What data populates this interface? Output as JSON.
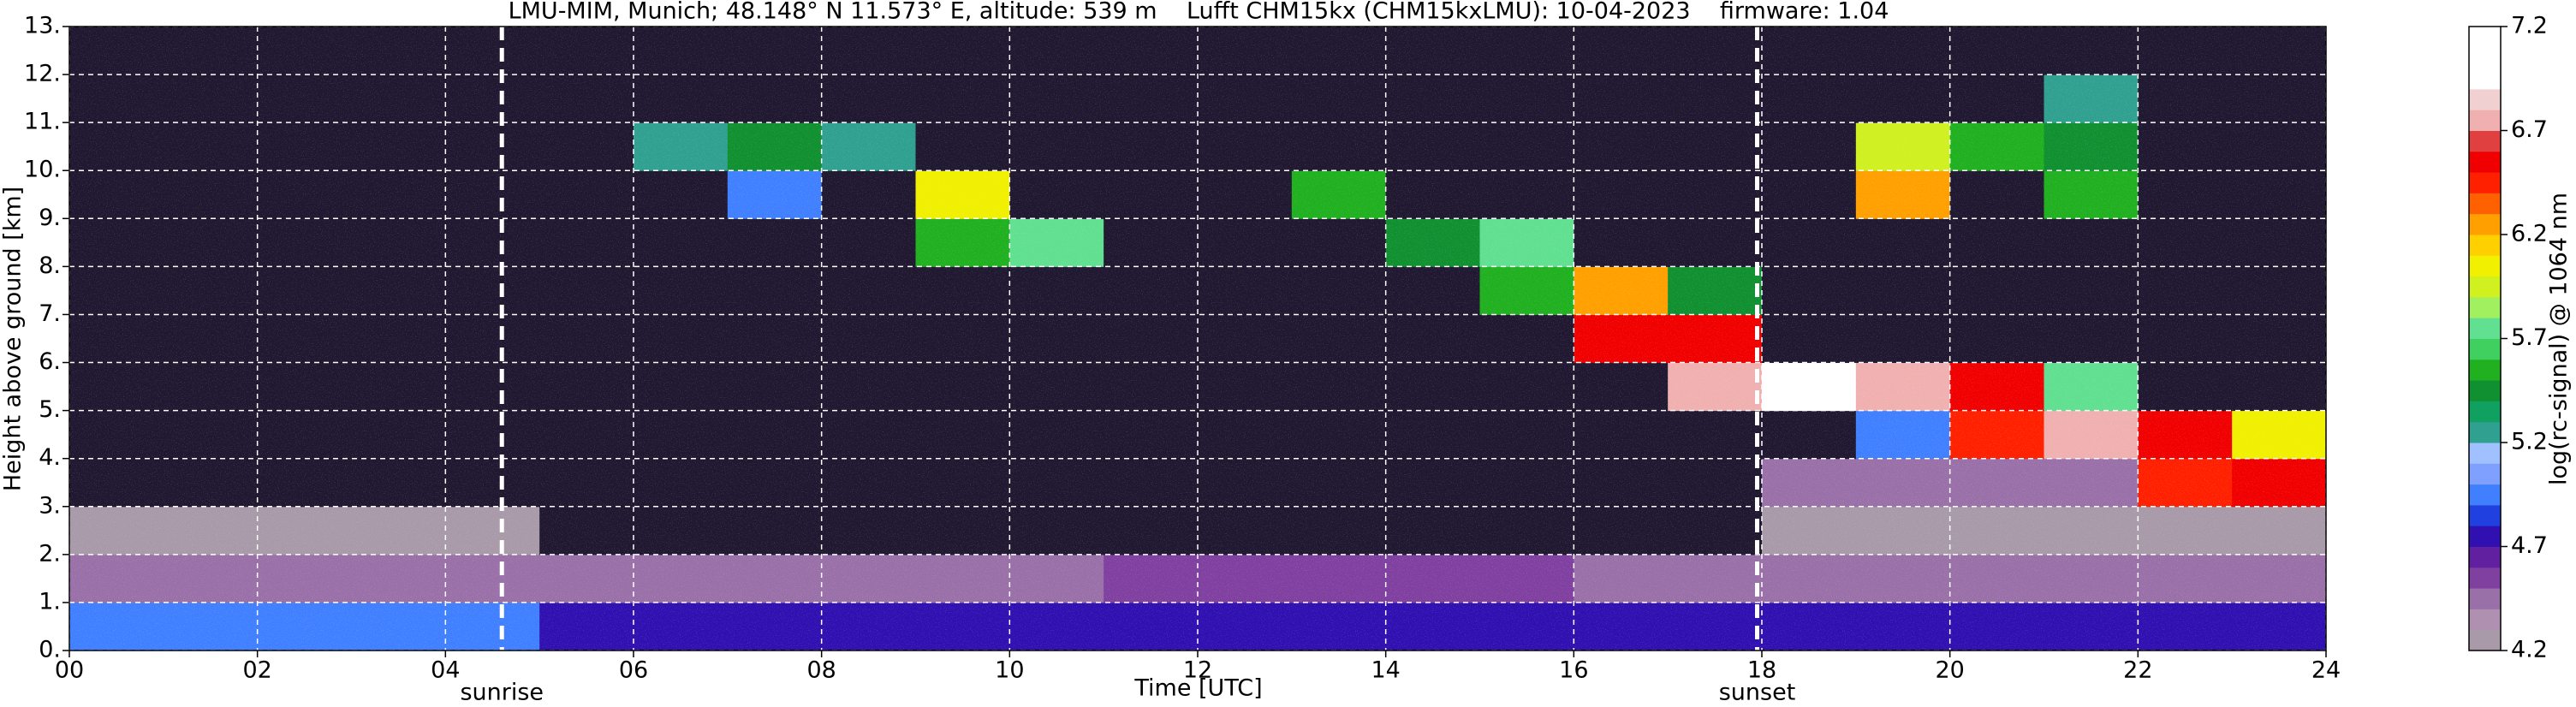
{
  "chart_data": {
    "type": "heatmap",
    "title": "LMU-MIM, Munich; 48.148° N 11.573° E, altitude: 539 m    Lufft CHM15kx (CHM15kxLMU): 10-04-2023    firmware: 1.04",
    "xlabel": "Time [UTC]",
    "ylabel": "Height above ground [km]",
    "colorbar_label": "log(rc-signal) @ 1064 nm",
    "x_edges": [
      0,
      1,
      2,
      3,
      4,
      5,
      6,
      7,
      8,
      9,
      10,
      11,
      12,
      13,
      14,
      15,
      16,
      17,
      18,
      19,
      20,
      21,
      22,
      23,
      24
    ],
    "y_edges": [
      0,
      1,
      2,
      3,
      4,
      5,
      6,
      7,
      8,
      9,
      10,
      11,
      12,
      13
    ],
    "z": [
      [
        4.9,
        4.9,
        4.9,
        4.9,
        4.9,
        4.8,
        4.8,
        4.8,
        4.8,
        4.8,
        4.8,
        4.8,
        4.7,
        4.7,
        4.7,
        4.7,
        4.7,
        4.7,
        4.8,
        4.8,
        4.8,
        4.8,
        4.8,
        4.7
      ],
      [
        4.5,
        4.5,
        4.5,
        4.5,
        4.5,
        4.4,
        4.4,
        4.4,
        4.4,
        4.4,
        4.4,
        4.6,
        4.6,
        4.6,
        4.6,
        4.6,
        4.4,
        4.4,
        4.5,
        4.5,
        4.5,
        4.5,
        4.5,
        4.5
      ],
      [
        4.3,
        4.3,
        4.3,
        4.3,
        4.3,
        4.1,
        4.1,
        4.1,
        4.1,
        4.1,
        4.1,
        4.1,
        4.1,
        4.1,
        4.1,
        4.1,
        4.1,
        4.1,
        4.3,
        4.3,
        4.3,
        4.3,
        4.3,
        4.3
      ],
      [
        4.1,
        4.1,
        4.1,
        4.1,
        4.1,
        4.1,
        4.1,
        4.1,
        4.1,
        4.1,
        4.1,
        4.1,
        4.1,
        4.1,
        4.1,
        4.1,
        4.1,
        4.1,
        4.4,
        4.4,
        4.4,
        4.4,
        6.4,
        6.6
      ],
      [
        4.1,
        4.1,
        4.1,
        4.1,
        4.1,
        4.1,
        4.1,
        4.1,
        4.1,
        4.1,
        4.1,
        4.1,
        4.1,
        4.1,
        4.1,
        4.1,
        4.1,
        4.1,
        4.1,
        5.0,
        6.4,
        6.8,
        6.6,
        6.0
      ],
      [
        4.1,
        4.1,
        4.1,
        4.1,
        4.1,
        4.1,
        4.1,
        4.1,
        4.1,
        4.1,
        4.1,
        4.1,
        4.1,
        4.1,
        4.1,
        4.1,
        4.1,
        6.8,
        6.9,
        6.8,
        6.5,
        5.8,
        4.1,
        4.1
      ],
      [
        4.1,
        4.1,
        4.1,
        4.1,
        4.1,
        4.1,
        4.1,
        4.1,
        4.1,
        4.1,
        4.1,
        4.1,
        4.1,
        4.1,
        4.1,
        4.1,
        6.5,
        6.6,
        4.1,
        4.1,
        4.1,
        4.1,
        4.1,
        4.1
      ],
      [
        4.1,
        4.1,
        4.1,
        4.1,
        4.1,
        4.1,
        4.1,
        4.1,
        4.1,
        4.1,
        4.1,
        4.1,
        4.1,
        4.1,
        4.1,
        5.6,
        6.2,
        5.5,
        4.1,
        4.1,
        4.1,
        4.1,
        4.1,
        4.1
      ],
      [
        4.1,
        4.1,
        4.1,
        4.1,
        4.1,
        4.1,
        4.1,
        4.1,
        4.1,
        5.6,
        5.8,
        4.1,
        4.1,
        4.1,
        5.5,
        5.8,
        4.1,
        4.1,
        4.1,
        4.1,
        4.1,
        4.1,
        4.1,
        4.1
      ],
      [
        4.1,
        4.1,
        4.1,
        4.1,
        4.1,
        4.1,
        4.1,
        5.0,
        4.1,
        6.0,
        4.1,
        4.1,
        4.1,
        5.6,
        4.1,
        4.1,
        4.1,
        4.1,
        4.1,
        6.3,
        4.1,
        5.6,
        4.1,
        4.1
      ],
      [
        4.1,
        4.1,
        4.1,
        4.1,
        4.1,
        4.1,
        5.3,
        5.4,
        5.2,
        4.1,
        4.1,
        4.1,
        4.1,
        4.1,
        4.1,
        4.1,
        4.1,
        4.1,
        4.1,
        5.9,
        5.6,
        5.4,
        4.1,
        4.1
      ],
      [
        4.1,
        4.1,
        4.1,
        4.1,
        4.1,
        4.1,
        4.1,
        4.1,
        4.1,
        4.1,
        4.1,
        4.1,
        4.1,
        4.1,
        4.1,
        4.1,
        4.1,
        4.1,
        4.1,
        4.1,
        4.1,
        5.2,
        4.1,
        4.1
      ],
      [
        4.1,
        4.1,
        4.1,
        4.1,
        4.1,
        4.1,
        4.1,
        4.1,
        4.1,
        4.1,
        4.1,
        4.1,
        4.1,
        4.1,
        4.1,
        4.1,
        4.1,
        4.1,
        4.1,
        4.1,
        4.1,
        4.1,
        4.1,
        4.1
      ]
    ],
    "zlim": [
      4.2,
      7.2
    ],
    "colors": [
      "#a89aa8",
      "#b090b0",
      "#9a70a8",
      "#8040a0",
      "#6020a0",
      "#3010b0",
      "#2040e0",
      "#4080ff",
      "#80a0ff",
      "#a0c0ff",
      "#30a090",
      "#10a060",
      "#109030",
      "#20b020",
      "#40d060",
      "#60e090",
      "#a0f060",
      "#d0f020",
      "#f0f000",
      "#ffd000",
      "#ffa000",
      "#ff6000",
      "#ff2000",
      "#f00000",
      "#e04040",
      "#f0b0b0",
      "#f0d0d0",
      "#ffffff",
      "#ffffff",
      "#ffffff"
    ],
    "under_color": "#201830",
    "xlim": [
      0,
      24
    ],
    "ylim": [
      0,
      13
    ],
    "xticks": [
      {
        "value": 0,
        "label": "00"
      },
      {
        "value": 2,
        "label": "02"
      },
      {
        "value": 4,
        "label": "04"
      },
      {
        "value": 6,
        "label": "06"
      },
      {
        "value": 8,
        "label": "08"
      },
      10,
      12,
      14,
      16,
      18,
      20,
      22,
      24
    ],
    "yticks": [
      {
        "value": 0,
        "label": "0."
      },
      {
        "value": 1,
        "label": "1."
      },
      {
        "value": 2,
        "label": "2."
      },
      {
        "value": 3,
        "label": "3."
      },
      {
        "value": 4,
        "label": "4."
      },
      {
        "value": 5,
        "label": "5."
      },
      {
        "value": 6,
        "label": "6."
      },
      {
        "value": 7,
        "label": "7."
      },
      {
        "value": 8,
        "label": "8."
      },
      {
        "value": 9,
        "label": "9."
      },
      {
        "value": 10,
        "label": "10."
      },
      {
        "value": 11,
        "label": "11."
      },
      {
        "value": 12,
        "label": "12."
      },
      {
        "value": 13,
        "label": "13."
      }
    ],
    "zticks": [
      4.2,
      4.7,
      5.2,
      5.7,
      6.2,
      6.7,
      7.2
    ],
    "events": [
      {
        "label": "sunrise",
        "x": 4.6
      },
      {
        "label": "sunset",
        "x": 17.95
      }
    ],
    "grid": true
  }
}
